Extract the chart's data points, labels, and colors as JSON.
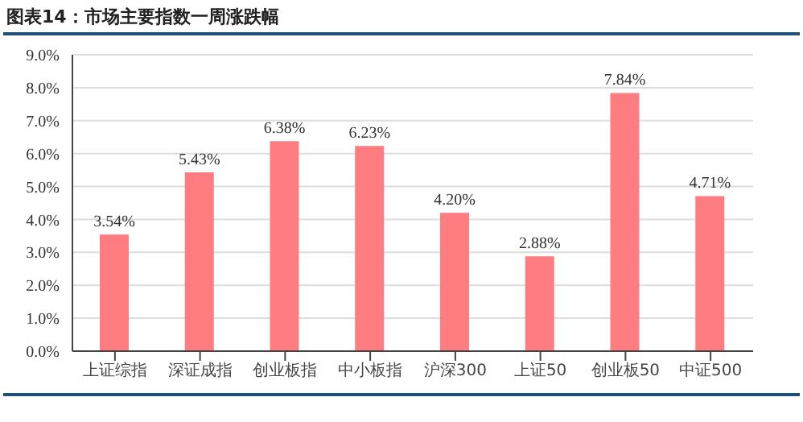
{
  "chart_data": {
    "type": "bar",
    "title": "图表14：市场主要指数一周涨跌幅",
    "categories": [
      "上证综指",
      "深证成指",
      "创业板指",
      "中小板指",
      "沪深300",
      "上证50",
      "创业板50",
      "中证500"
    ],
    "values": [
      3.54,
      5.43,
      6.38,
      6.23,
      4.2,
      2.88,
      7.84,
      4.71
    ],
    "value_labels": [
      "3.54%",
      "5.43%",
      "6.38%",
      "6.23%",
      "4.20%",
      "2.88%",
      "7.84%",
      "4.71%"
    ],
    "color": "#ff7c80",
    "ylim": [
      0,
      9
    ],
    "yticks": [
      {
        "value": 0,
        "label": "0.0%"
      },
      {
        "value": 1,
        "label": "1.0%"
      },
      {
        "value": 2,
        "label": "2.0%"
      },
      {
        "value": 3,
        "label": "3.0%"
      },
      {
        "value": 4,
        "label": "4.0%"
      },
      {
        "value": 5,
        "label": "5.0%"
      },
      {
        "value": 6,
        "label": "6.0%"
      },
      {
        "value": 7,
        "label": "7.0%"
      },
      {
        "value": 8,
        "label": "8.0%"
      },
      {
        "value": 9,
        "label": "9.0%"
      }
    ],
    "grid": "y",
    "legend": false
  }
}
